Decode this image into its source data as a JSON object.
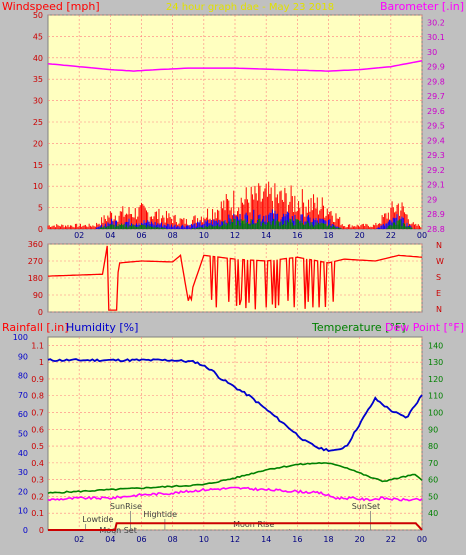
{
  "header": {
    "wind_label": "Windspeed [mph]",
    "title": "24 hour graph dae - May 23 2018",
    "baro_label": "Barometer [.in]"
  },
  "lower_header": {
    "rain_label": "Rainfall [.in]",
    "humidity_label": "Humidity [%]",
    "temp_label": "Temperature [°F]",
    "dew_label": "Dew Point [°F]"
  },
  "colors": {
    "wind_gust": "#ff0000",
    "wind_avg": "#0000ff",
    "wind_low": "#008000",
    "barometer": "#ff00ff",
    "direction": "#ff0000",
    "humidity": "#0000cc",
    "temperature": "#008000",
    "dewpoint": "#ff00ff",
    "rain": "#cc0000",
    "plot_bg": "#ffffc0",
    "grid": "#ff8080"
  },
  "chart_data": [
    {
      "type": "line",
      "name": "windspeed-barometer",
      "x_ticks": [
        "02",
        "04",
        "06",
        "08",
        "10",
        "12",
        "14",
        "16",
        "18",
        "20",
        "22",
        "00"
      ],
      "y_left": {
        "label": "Windspeed [mph]",
        "ticks": [
          "0",
          "5",
          "10",
          "15",
          "20",
          "25",
          "30",
          "35",
          "40",
          "45",
          "50"
        ],
        "ylim": [
          0,
          50
        ]
      },
      "y_right": {
        "label": "Barometer [.in]",
        "ticks": [
          "28.8",
          "28.9",
          "29",
          "29.1",
          "29.2",
          "29.3",
          "29.4",
          "29.5",
          "29.6",
          "29.7",
          "29.8",
          "29.9",
          "30",
          "30.1",
          "30.2"
        ],
        "ylim": [
          28.8,
          30.25
        ]
      },
      "grid": true,
      "barometer": {
        "x": [
          0,
          2,
          4,
          5.5,
          7,
          9,
          12,
          15,
          18,
          20,
          22,
          24
        ],
        "y": [
          29.92,
          29.9,
          29.88,
          29.87,
          29.88,
          29.89,
          29.89,
          29.88,
          29.87,
          29.88,
          29.9,
          29.94
        ]
      },
      "wind_gust_envelope": {
        "x": [
          0,
          3,
          4,
          6,
          8,
          9,
          12,
          14,
          16,
          18,
          19,
          21,
          21.5,
          22.5,
          23.5
        ],
        "y": [
          1,
          1,
          4,
          5,
          3,
          2,
          8,
          9,
          8,
          6,
          1,
          1,
          3,
          7,
          1
        ]
      },
      "wind_avg_envelope": {
        "x": [
          0,
          3,
          4,
          6,
          8,
          9,
          12,
          14,
          16,
          18,
          19,
          21,
          21.5,
          22.5,
          23.5
        ],
        "y": [
          0,
          0,
          2,
          2,
          1,
          1,
          3,
          4,
          3,
          2,
          0,
          0,
          1,
          3,
          0
        ]
      },
      "wind_low_envelope": {
        "x": [
          0,
          3,
          4,
          6,
          8,
          9,
          12,
          14,
          16,
          18,
          19,
          21,
          21.5,
          22.5,
          23.5
        ],
        "y": [
          0,
          0,
          1,
          1,
          0,
          0,
          2,
          2,
          2,
          1,
          0,
          0,
          0,
          2,
          0
        ]
      }
    },
    {
      "type": "line",
      "name": "wind-direction",
      "y_ticks": [
        "360",
        "270",
        "180",
        "90",
        "0"
      ],
      "ylim": [
        0,
        360
      ],
      "compass": [
        "N",
        "W",
        "S",
        "E",
        "N"
      ],
      "x": [
        0,
        3.5,
        3.8,
        4.1,
        4.6,
        6,
        8,
        8.5,
        9,
        10,
        12,
        14,
        16,
        18,
        19,
        21,
        22.5,
        24
      ],
      "y": [
        190,
        200,
        350,
        10,
        260,
        270,
        265,
        300,
        60,
        300,
        280,
        270,
        290,
        260,
        280,
        270,
        300,
        290
      ]
    },
    {
      "type": "line",
      "name": "temperature-humidity-rain",
      "x_ticks": [
        "02",
        "04",
        "06",
        "08",
        "10",
        "12",
        "14",
        "16",
        "18",
        "20",
        "22",
        "00"
      ],
      "y_humidity": {
        "ticks": [
          "0",
          "10",
          "20",
          "30",
          "40",
          "50",
          "60",
          "70",
          "80",
          "90",
          "100"
        ],
        "ylim": [
          0,
          100
        ]
      },
      "y_rain": {
        "ticks": [
          "0",
          "0.1",
          "0.2",
          "0.3",
          "0.4",
          "0.5",
          "0.6",
          "0.7",
          "0.8",
          "0.9",
          "1",
          "1.1"
        ],
        "ylim": [
          0,
          1.15
        ]
      },
      "y_temp": {
        "ticks": [
          "40",
          "50",
          "60",
          "70",
          "80",
          "90",
          "100",
          "110",
          "120",
          "130",
          "140"
        ],
        "ylim": [
          30,
          145
        ]
      },
      "annotations": [
        "Lowtide",
        "Moon Set",
        "SunRise",
        "Hightide",
        "Moon Rise",
        "SunSet"
      ],
      "series": [
        {
          "name": "Humidity",
          "x": [
            0,
            2,
            4,
            6,
            8,
            9.5,
            10.5,
            11,
            13,
            15,
            16.5,
            17.5,
            18.5,
            19.2,
            20,
            21,
            22,
            23,
            24
          ],
          "y": [
            88,
            88,
            88,
            88,
            88,
            87,
            83,
            79,
            69,
            56,
            46,
            42,
            41,
            44,
            55,
            68,
            62,
            58,
            70
          ]
        },
        {
          "name": "Temperature",
          "x": [
            0,
            2,
            4,
            6,
            8,
            10,
            12,
            14,
            16,
            17.5,
            18.5,
            19.5,
            20.5,
            21.5,
            22.5,
            23.5,
            24
          ],
          "y": [
            52,
            53,
            54,
            55,
            56,
            57,
            61,
            66,
            69,
            70,
            69,
            66,
            62,
            59,
            61,
            63,
            60
          ]
        },
        {
          "name": "Dew Point",
          "x": [
            0,
            2,
            4,
            6,
            8,
            10,
            12,
            14,
            16,
            17.5,
            18.5,
            19.5,
            20.5,
            21.5,
            22.5,
            23.5,
            24
          ],
          "y": [
            48,
            49,
            49,
            51,
            52,
            54,
            55,
            54,
            53,
            52,
            49,
            49,
            48,
            49,
            48,
            48,
            48
          ]
        },
        {
          "name": "Rainfall",
          "x": [
            0,
            4.3,
            4.4,
            23.5,
            23.6,
            24
          ],
          "y": [
            0,
            0,
            0.04,
            0.04,
            0.04,
            0.0
          ]
        }
      ]
    }
  ]
}
